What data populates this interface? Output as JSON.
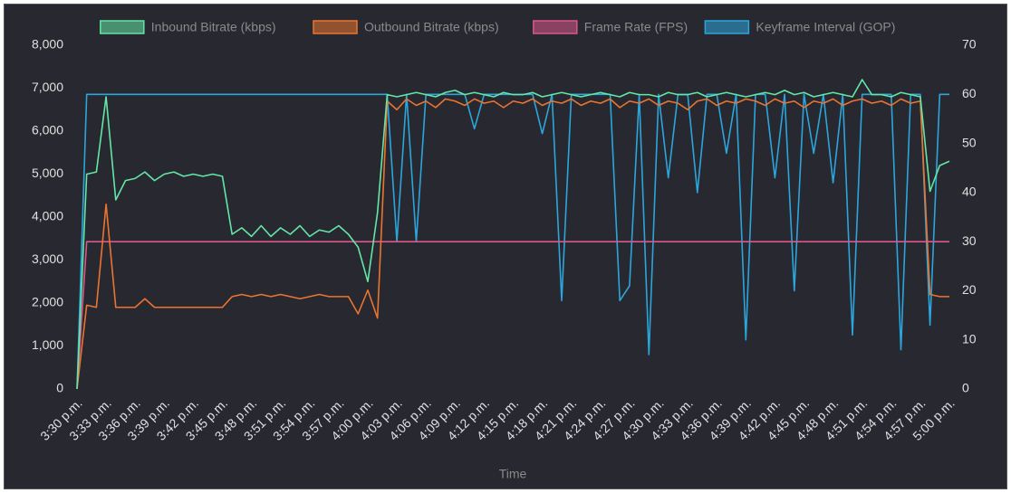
{
  "chart_data": {
    "type": "line",
    "x_label": "Time",
    "x": [
      930,
      931,
      932,
      933,
      934,
      935,
      936,
      937,
      938,
      939,
      940,
      941,
      942,
      943,
      944,
      945,
      946,
      947,
      948,
      949,
      950,
      951,
      952,
      953,
      954,
      955,
      956,
      957,
      958,
      959,
      960,
      961,
      962,
      963,
      964,
      965,
      966,
      967,
      968,
      969,
      970,
      971,
      972,
      973,
      974,
      975,
      976,
      977,
      978,
      979,
      980,
      981,
      982,
      983,
      984,
      985,
      986,
      987,
      988,
      989,
      990,
      991,
      992,
      993,
      994,
      995,
      996,
      997,
      998,
      999,
      1000,
      1001,
      1002,
      1003,
      1004,
      1005,
      1006,
      1007,
      1008,
      1009,
      1010,
      1011,
      1012,
      1013,
      1014,
      1015,
      1016,
      1017,
      1018,
      1019,
      1020
    ],
    "xlim": [
      930,
      1020
    ],
    "xticks": [
      {
        "value": 930,
        "label": "3:30 p.m."
      },
      {
        "value": 933,
        "label": "3:33 p.m."
      },
      {
        "value": 936,
        "label": "3:36 p.m."
      },
      {
        "value": 939,
        "label": "3:39 p.m."
      },
      {
        "value": 942,
        "label": "3:42 p.m."
      },
      {
        "value": 945,
        "label": "3:45 p.m."
      },
      {
        "value": 948,
        "label": "3:48 p.m."
      },
      {
        "value": 951,
        "label": "3:51 p.m."
      },
      {
        "value": 954,
        "label": "3:54 p.m."
      },
      {
        "value": 957,
        "label": "3:57 p.m."
      },
      {
        "value": 960,
        "label": "4:00 p.m."
      },
      {
        "value": 963,
        "label": "4:03 p.m."
      },
      {
        "value": 966,
        "label": "4:06 p.m."
      },
      {
        "value": 969,
        "label": "4:09 p.m."
      },
      {
        "value": 972,
        "label": "4:12 p.m."
      },
      {
        "value": 975,
        "label": "4:15 p.m."
      },
      {
        "value": 978,
        "label": "4:18 p.m."
      },
      {
        "value": 981,
        "label": "4:21 p.m."
      },
      {
        "value": 984,
        "label": "4:24 p.m."
      },
      {
        "value": 987,
        "label": "4:27 p.m."
      },
      {
        "value": 990,
        "label": "4:30 p.m."
      },
      {
        "value": 993,
        "label": "4:33 p.m."
      },
      {
        "value": 996,
        "label": "4:36 p.m."
      },
      {
        "value": 999,
        "label": "4:39 p.m."
      },
      {
        "value": 1002,
        "label": "4:42 p.m."
      },
      {
        "value": 1005,
        "label": "4:45 p.m."
      },
      {
        "value": 1008,
        "label": "4:48 p.m."
      },
      {
        "value": 1011,
        "label": "4:51 p.m."
      },
      {
        "value": 1014,
        "label": "4:54 p.m."
      },
      {
        "value": 1017,
        "label": "4:57 p.m."
      },
      {
        "value": 1020,
        "label": "5:00 p.m."
      }
    ],
    "ylim": [
      0,
      8000
    ],
    "yticks": [
      0,
      {
        "value": 1000,
        "label": "1,000"
      },
      {
        "value": 2000,
        "label": "2,000"
      },
      {
        "value": 3000,
        "label": "3,000"
      },
      {
        "value": 4000,
        "label": "4,000"
      },
      {
        "value": 5000,
        "label": "5,000"
      },
      {
        "value": 6000,
        "label": "6,000"
      },
      {
        "value": 7000,
        "label": "7,000"
      },
      {
        "value": 8000,
        "label": "8,000"
      }
    ],
    "y2lim": [
      0,
      70
    ],
    "y2ticks": [
      0,
      10,
      20,
      30,
      40,
      50,
      60,
      70
    ],
    "grid": false,
    "legend": "top",
    "series": [
      {
        "name": "Inbound Bitrate (kbps)",
        "color": "#63e6a6",
        "values": [
          0,
          5000,
          5050,
          6800,
          4400,
          4850,
          4900,
          5050,
          4850,
          5000,
          5050,
          4950,
          5000,
          4950,
          5000,
          4950,
          3600,
          3750,
          3550,
          3800,
          3550,
          3750,
          3600,
          3800,
          3550,
          3700,
          3650,
          3800,
          3600,
          3300,
          2500,
          4100,
          6850,
          6800,
          6850,
          6900,
          6850,
          6800,
          6900,
          6950,
          6850,
          6900,
          6850,
          6800,
          6900,
          6850,
          6850,
          6900,
          6800,
          6850,
          6900,
          6850,
          6800,
          6850,
          6900,
          6850,
          6800,
          6900,
          6850,
          6850,
          6800,
          6900,
          6850,
          6850,
          6900,
          6800,
          6850,
          6900,
          6850,
          6800,
          6850,
          6900,
          6850,
          6950,
          6850,
          6900,
          6800,
          6850,
          6900,
          6850,
          6800,
          7200,
          6850,
          6850,
          6800,
          6900,
          6850,
          6800,
          4600,
          5200,
          5300
        ]
      },
      {
        "name": "Outbound Bitrate (kbps)",
        "color": "#ea7430",
        "values": [
          0,
          1950,
          1900,
          4300,
          1900,
          1900,
          1900,
          2100,
          1900,
          1900,
          1900,
          1900,
          1900,
          1900,
          1900,
          1900,
          2150,
          2200,
          2150,
          2200,
          2150,
          2200,
          2150,
          2100,
          2150,
          2200,
          2150,
          2150,
          2150,
          1750,
          2300,
          1650,
          6700,
          6500,
          6750,
          6600,
          6700,
          6550,
          6750,
          6700,
          6600,
          6750,
          6650,
          6700,
          6550,
          6700,
          6650,
          6750,
          6600,
          6700,
          6650,
          6750,
          6600,
          6700,
          6650,
          6750,
          6550,
          6700,
          6650,
          6750,
          6600,
          6700,
          6650,
          6500,
          6700,
          6750,
          6600,
          6700,
          6650,
          6750,
          6700,
          6600,
          6750,
          6650,
          6700,
          6550,
          6700,
          6650,
          6750,
          6600,
          6700,
          6750,
          6650,
          6700,
          6600,
          6750,
          6650,
          6700,
          2200,
          2150,
          2150
        ]
      },
      {
        "name": "Frame Rate (FPS)",
        "color": "#d9578a",
        "axis": "y2",
        "values": [
          0,
          30,
          30,
          30,
          30,
          30,
          30,
          30,
          30,
          30,
          30,
          30,
          30,
          30,
          30,
          30,
          30,
          30,
          30,
          30,
          30,
          30,
          30,
          30,
          30,
          30,
          30,
          30,
          30,
          30,
          30,
          30,
          30,
          30,
          30,
          30,
          30,
          30,
          30,
          30,
          30,
          30,
          30,
          30,
          30,
          30,
          30,
          30,
          30,
          30,
          30,
          30,
          30,
          30,
          30,
          30,
          30,
          30,
          30,
          30,
          30,
          30,
          30,
          30,
          30,
          30,
          30,
          30,
          30,
          30,
          30,
          30,
          30,
          30,
          30,
          30,
          30,
          30,
          30,
          30,
          30,
          30,
          30,
          30,
          30,
          30,
          30,
          30,
          30,
          30,
          30
        ]
      },
      {
        "name": "Keyframe Interval (GOP)",
        "color": "#2ba6dc",
        "axis": "y2",
        "values": [
          0,
          60,
          60,
          60,
          60,
          60,
          60,
          60,
          60,
          60,
          60,
          60,
          60,
          60,
          60,
          60,
          60,
          60,
          60,
          60,
          60,
          60,
          60,
          60,
          60,
          60,
          60,
          60,
          60,
          60,
          60,
          60,
          60,
          30,
          60,
          30,
          60,
          60,
          60,
          60,
          60,
          53,
          60,
          60,
          60,
          60,
          60,
          60,
          52,
          60,
          18,
          60,
          60,
          60,
          60,
          60,
          18,
          21,
          60,
          7,
          60,
          43,
          60,
          60,
          40,
          60,
          60,
          48,
          60,
          10,
          60,
          60,
          43,
          60,
          20,
          60,
          48,
          60,
          42,
          60,
          11,
          60,
          60,
          60,
          60,
          8,
          60,
          60,
          13,
          60,
          60
        ]
      }
    ]
  }
}
